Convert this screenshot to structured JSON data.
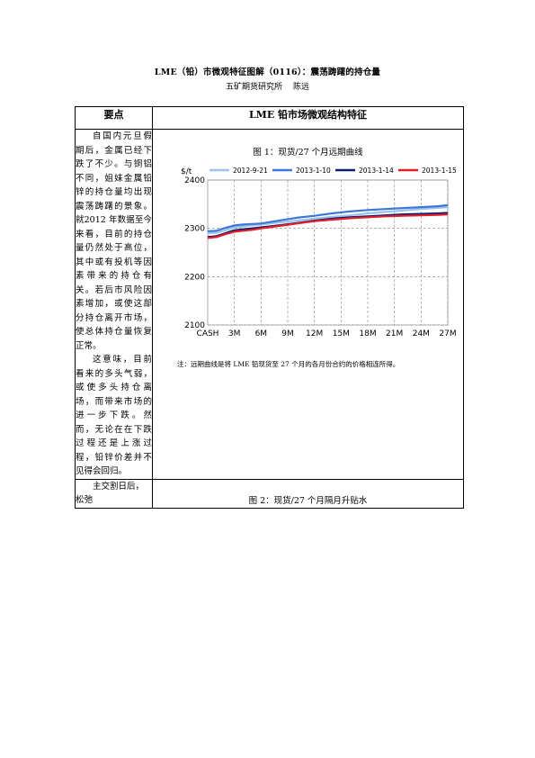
{
  "doc": {
    "title": "LME（铅）市微观特征图解（0116）：震荡踌躇的持仓量",
    "org": "五矿期货研究所",
    "author": "陈远"
  },
  "table": {
    "header_left": "要点",
    "header_right": "LME 铅市场微观结构特征",
    "row1_left_p1": "自国内元旦假期后，金属已经下跌了不少。与铜铝不同，姐妹金属铅锌的持仓量均出现震荡踌躇的景象。就2012 年数据至今来看，目前的持仓量仍然处于高位，其中或有投机等因素带来的持仓有关。若后市风险因素增加，或使这部分持仓离开市场，使总体持仓量恢复正常。",
    "row1_left_p2": "这意味，目前看来的多头气弱，或使多头持仓离场，而带来市场的进一步下跌。然而，无论在在下跌过程还是上涨过程，铅锌价差并不见得会回归。",
    "fig1_caption": "图 1：现货/27 个月远期曲线",
    "fig1_note": "注：远期曲线是将 LME 铅现货至 27 个月的各月份合约的价格相连所得。",
    "row2_left": "主交割日后，松弛",
    "fig2_caption": "图 2：现货/27 个月隔月升贴水"
  },
  "chart_data": {
    "type": "line",
    "unit_label": "$/t",
    "x_ticks": [
      "CASH",
      "3M",
      "6M",
      "9M",
      "12M",
      "15M",
      "18M",
      "21M",
      "24M",
      "27M"
    ],
    "y_ticks": [
      2100,
      2200,
      2300,
      2400
    ],
    "ylim": [
      2100,
      2400
    ],
    "grid": true,
    "legend_position": "top",
    "series": [
      {
        "name": "2012-9-21",
        "color": "#9cc3ea",
        "points": [
          [
            0,
            2290
          ],
          [
            1,
            2291
          ],
          [
            2,
            2296
          ],
          [
            3,
            2302
          ],
          [
            4,
            2304
          ],
          [
            5,
            2306
          ],
          [
            6,
            2308
          ],
          [
            8,
            2312
          ],
          [
            10,
            2316
          ],
          [
            12,
            2320
          ],
          [
            14,
            2324
          ],
          [
            16,
            2327
          ],
          [
            18,
            2331
          ],
          [
            20,
            2334
          ],
          [
            22,
            2337
          ],
          [
            24,
            2340
          ],
          [
            27,
            2344
          ]
        ]
      },
      {
        "name": "2013-1-10",
        "color": "#3d78d8",
        "points": [
          [
            0,
            2294
          ],
          [
            1,
            2295
          ],
          [
            2,
            2301
          ],
          [
            3,
            2306
          ],
          [
            4,
            2308
          ],
          [
            5,
            2309
          ],
          [
            6,
            2310
          ],
          [
            8,
            2316
          ],
          [
            10,
            2322
          ],
          [
            12,
            2326
          ],
          [
            14,
            2331
          ],
          [
            16,
            2335
          ],
          [
            18,
            2338
          ],
          [
            20,
            2340
          ],
          [
            22,
            2342
          ],
          [
            24,
            2344
          ],
          [
            26,
            2346
          ],
          [
            27,
            2348
          ]
        ]
      },
      {
        "name": "2013-1-14",
        "color": "#0c1f6b",
        "points": [
          [
            0,
            2282
          ],
          [
            1,
            2284
          ],
          [
            2,
            2290
          ],
          [
            3,
            2296
          ],
          [
            4,
            2298
          ],
          [
            5,
            2300
          ],
          [
            6,
            2302
          ],
          [
            8,
            2306
          ],
          [
            10,
            2311
          ],
          [
            12,
            2316
          ],
          [
            14,
            2320
          ],
          [
            16,
            2323
          ],
          [
            18,
            2325
          ],
          [
            20,
            2327
          ],
          [
            22,
            2329
          ],
          [
            24,
            2330
          ],
          [
            26,
            2331
          ],
          [
            27,
            2332
          ]
        ]
      },
      {
        "name": "2013-1-15",
        "color": "#e01f29",
        "points": [
          [
            0,
            2280
          ],
          [
            1,
            2282
          ],
          [
            2,
            2288
          ],
          [
            3,
            2293
          ],
          [
            4,
            2295
          ],
          [
            5,
            2297
          ],
          [
            6,
            2300
          ],
          [
            8,
            2305
          ],
          [
            10,
            2310
          ],
          [
            12,
            2315
          ],
          [
            14,
            2318
          ],
          [
            16,
            2321
          ],
          [
            18,
            2323
          ],
          [
            20,
            2325
          ],
          [
            22,
            2326
          ],
          [
            24,
            2327
          ],
          [
            26,
            2328
          ],
          [
            27,
            2329
          ]
        ]
      }
    ]
  }
}
